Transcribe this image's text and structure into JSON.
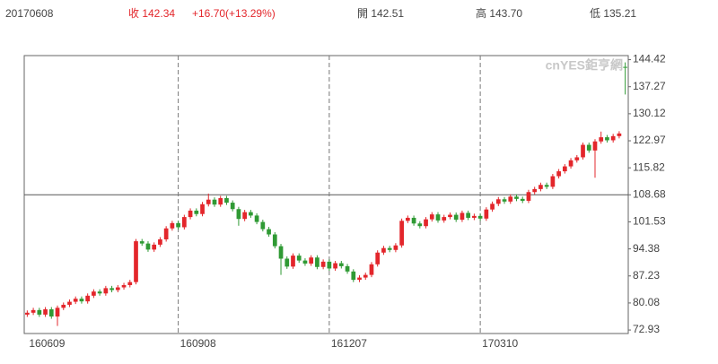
{
  "chart_data": {
    "type": "candlestick",
    "header": {
      "date": "20170608",
      "close": "收 142.34",
      "change": "+16.70(+13.29%)",
      "open": "開 142.51",
      "high": "高 143.70",
      "low": "低 135.21"
    },
    "watermark": "cnYES鉅亨網",
    "categories": [
      "160609",
      null,
      null,
      null,
      null,
      null,
      null,
      null,
      null,
      null,
      null,
      null,
      null,
      null,
      null,
      null,
      null,
      null,
      null,
      null,
      null,
      null,
      null,
      null,
      null,
      "160908",
      null,
      null,
      null,
      null,
      null,
      null,
      null,
      null,
      null,
      null,
      null,
      null,
      null,
      null,
      null,
      null,
      null,
      null,
      null,
      null,
      null,
      null,
      null,
      null,
      "161207",
      null,
      null,
      null,
      null,
      null,
      null,
      null,
      null,
      null,
      null,
      null,
      null,
      null,
      null,
      null,
      null,
      null,
      null,
      null,
      null,
      null,
      null,
      null,
      null,
      "170310",
      null,
      null,
      null,
      null,
      null,
      null,
      null,
      null,
      null,
      null,
      null,
      null,
      null,
      null,
      null,
      null,
      null,
      null,
      null,
      null,
      null,
      null,
      null,
      null
    ],
    "open": [
      77.0,
      77.5,
      78.2,
      77.0,
      78.4,
      76.5,
      78.8,
      79.6,
      80.4,
      81.2,
      80.5,
      82.0,
      83.1,
      82.6,
      84.0,
      83.5,
      84.2,
      84.8,
      85.6,
      96.4,
      95.8,
      94.2,
      95.5,
      96.9,
      99.8,
      101.2,
      100.1,
      102.8,
      104.5,
      103.6,
      106.2,
      107.4,
      106.1,
      107.8,
      106.6,
      104.9,
      102.3,
      104.1,
      103.2,
      101.5,
      99.6,
      98.2,
      95.1,
      91.8,
      89.7,
      92.6,
      91.3,
      90.5,
      92.1,
      89.6,
      91.0,
      89.2,
      90.6,
      89.8,
      88.4,
      86.2,
      86.8,
      87.5,
      90.3,
      93.4,
      94.6,
      94.1,
      95.3,
      101.8,
      102.6,
      101.1,
      100.4,
      102.2,
      103.5,
      101.9,
      102.8,
      103.4,
      102.1,
      103.9,
      102.6,
      103.1,
      102.4,
      104.8,
      106.3,
      107.5,
      106.9,
      108.2,
      107.6,
      107.1,
      109.4,
      110.2,
      111.3,
      110.8,
      113.6,
      114.9,
      116.2,
      117.8,
      118.6,
      121.9,
      120.4,
      122.8,
      123.9,
      123.1,
      124.2,
      142.51
    ],
    "high": [
      78.1,
      78.8,
      78.8,
      79.0,
      79.0,
      79.4,
      80.2,
      81.0,
      81.8,
      81.8,
      82.6,
      83.7,
      83.7,
      84.6,
      84.6,
      84.8,
      85.4,
      86.2,
      97.0,
      97.0,
      96.4,
      96.1,
      97.5,
      100.4,
      101.8,
      101.8,
      103.4,
      105.1,
      105.1,
      106.8,
      109.0,
      108.0,
      108.4,
      108.4,
      107.2,
      105.5,
      104.7,
      104.7,
      103.8,
      102.1,
      100.2,
      98.8,
      95.7,
      92.4,
      93.2,
      93.2,
      91.9,
      92.7,
      92.7,
      91.6,
      91.6,
      91.2,
      91.2,
      90.4,
      89.0,
      87.4,
      88.1,
      90.9,
      94.0,
      95.2,
      95.2,
      95.9,
      102.4,
      103.2,
      103.2,
      101.7,
      102.8,
      104.1,
      104.1,
      103.4,
      104.0,
      104.0,
      104.5,
      104.5,
      103.7,
      103.7,
      105.4,
      106.9,
      108.1,
      108.1,
      108.8,
      108.8,
      108.2,
      110.0,
      110.8,
      111.9,
      111.9,
      114.2,
      115.5,
      116.8,
      118.4,
      119.2,
      122.5,
      122.5,
      123.4,
      125.4,
      124.5,
      124.8,
      125.5,
      143.7
    ],
    "low": [
      76.4,
      76.9,
      76.4,
      76.4,
      75.9,
      74.0,
      78.2,
      79.0,
      79.8,
      79.9,
      79.9,
      81.4,
      82.0,
      82.0,
      82.9,
      82.9,
      83.6,
      84.2,
      85.0,
      95.2,
      93.6,
      93.6,
      94.9,
      96.3,
      99.2,
      99.5,
      99.5,
      102.2,
      103.0,
      103.0,
      105.6,
      105.5,
      105.5,
      106.0,
      104.3,
      100.5,
      101.7,
      102.6,
      100.9,
      99.0,
      97.6,
      94.5,
      87.5,
      89.1,
      89.1,
      90.7,
      89.9,
      89.9,
      89.0,
      89.0,
      88.6,
      88.6,
      89.2,
      87.8,
      85.6,
      85.6,
      86.2,
      86.9,
      89.7,
      92.8,
      93.5,
      93.5,
      94.7,
      101.2,
      100.5,
      99.8,
      99.8,
      101.6,
      101.3,
      101.3,
      102.2,
      101.5,
      101.5,
      102.0,
      102.0,
      101.8,
      101.8,
      104.2,
      105.7,
      106.3,
      106.3,
      107.0,
      106.5,
      106.5,
      108.8,
      109.6,
      110.2,
      110.2,
      113.0,
      114.3,
      115.6,
      117.2,
      118.0,
      119.8,
      113.2,
      122.2,
      122.5,
      122.5,
      123.6,
      135.21
    ],
    "close": [
      77.5,
      78.2,
      77.0,
      78.4,
      76.5,
      78.8,
      79.6,
      80.4,
      81.2,
      80.5,
      82.0,
      83.1,
      82.6,
      84.0,
      83.5,
      84.2,
      84.8,
      85.6,
      96.4,
      95.8,
      94.2,
      95.5,
      96.9,
      99.8,
      101.2,
      100.1,
      102.8,
      104.5,
      103.6,
      106.2,
      107.4,
      106.1,
      107.8,
      106.6,
      104.9,
      102.3,
      104.1,
      103.2,
      101.5,
      99.6,
      98.2,
      95.1,
      91.8,
      89.7,
      92.6,
      91.3,
      90.5,
      92.1,
      89.6,
      91.0,
      89.2,
      90.6,
      89.8,
      88.4,
      86.2,
      86.8,
      87.5,
      90.3,
      93.4,
      94.6,
      94.1,
      95.3,
      101.8,
      102.6,
      101.1,
      100.4,
      102.2,
      103.5,
      101.9,
      102.8,
      103.4,
      102.1,
      103.9,
      102.6,
      103.1,
      102.4,
      104.8,
      106.3,
      107.5,
      106.9,
      108.2,
      107.6,
      107.1,
      109.4,
      110.2,
      111.3,
      110.8,
      113.6,
      114.9,
      116.2,
      117.8,
      118.6,
      121.9,
      120.4,
      122.8,
      123.9,
      123.1,
      124.2,
      124.9,
      142.34
    ],
    "up_color": "#e3262b",
    "down_color": "#2f9a34",
    "ylim": [
      72,
      145.5
    ],
    "yticks": [
      72.93,
      80.08,
      87.23,
      94.38,
      101.53,
      108.68,
      115.82,
      122.97,
      130.12,
      137.27,
      144.42
    ],
    "reference_line": 108.68
  }
}
